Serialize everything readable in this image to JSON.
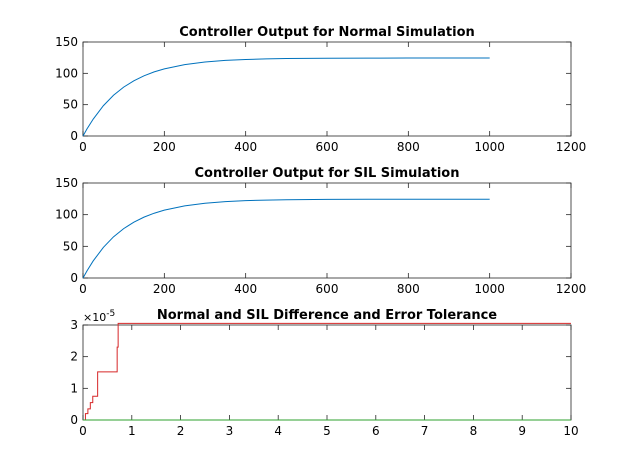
{
  "figure": {
    "background": "#ffffff"
  },
  "chart_data": [
    {
      "type": "line",
      "title": "Controller Output for Normal Simulation",
      "xlabel": "",
      "ylabel": "",
      "xlim": [
        0,
        1200
      ],
      "ylim": [
        0,
        150
      ],
      "xticks": [
        0,
        200,
        400,
        600,
        800,
        1000,
        1200
      ],
      "yticks": [
        0,
        50,
        100,
        150
      ],
      "grid": false,
      "legend": "none",
      "series": [
        {
          "color": "#0072bd",
          "x": [
            0,
            10,
            25,
            50,
            75,
            100,
            125,
            150,
            175,
            200,
            250,
            300,
            350,
            400,
            450,
            500,
            600,
            700,
            800,
            900,
            1000
          ],
          "y": [
            0,
            11.5,
            26.9,
            48.3,
            65.0,
            78.0,
            88.1,
            96.1,
            102.3,
            107.1,
            113.9,
            118.1,
            120.6,
            122.1,
            123.0,
            123.6,
            124.1,
            124.3,
            124.4,
            124.4,
            124.4
          ]
        }
      ]
    },
    {
      "type": "line",
      "title": "Controller Output for SIL Simulation",
      "xlabel": "",
      "ylabel": "",
      "xlim": [
        0,
        1200
      ],
      "ylim": [
        0,
        150
      ],
      "xticks": [
        0,
        200,
        400,
        600,
        800,
        1000,
        1200
      ],
      "yticks": [
        0,
        50,
        100,
        150
      ],
      "grid": false,
      "legend": "none",
      "series": [
        {
          "color": "#0072bd",
          "x": [
            0,
            10,
            25,
            50,
            75,
            100,
            125,
            150,
            175,
            200,
            250,
            300,
            350,
            400,
            450,
            500,
            600,
            700,
            800,
            900,
            1000
          ],
          "y": [
            0,
            11.5,
            26.9,
            48.3,
            65.0,
            78.0,
            88.1,
            96.1,
            102.3,
            107.1,
            113.9,
            118.1,
            120.6,
            122.1,
            123.0,
            123.6,
            124.1,
            124.3,
            124.4,
            124.4,
            124.4
          ]
        }
      ]
    },
    {
      "type": "line",
      "title": "Normal and SIL Difference and Error Tolerance",
      "xlabel": "",
      "ylabel": "",
      "xlim": [
        0,
        10
      ],
      "ylim": [
        0,
        3
      ],
      "y_exponent_label": "×10",
      "y_exponent_power": "-5",
      "xticks": [
        0,
        1,
        2,
        3,
        4,
        5,
        6,
        7,
        8,
        9,
        10
      ],
      "yticks": [
        0,
        1,
        2,
        3
      ],
      "grid": false,
      "legend": "none",
      "series": [
        {
          "color": "#d62728",
          "step": true,
          "x": [
            0,
            0.05,
            0.1,
            0.15,
            0.2,
            0.3,
            0.5,
            0.7,
            0.72,
            10
          ],
          "y": [
            0,
            0.2,
            0.35,
            0.55,
            0.75,
            1.52,
            1.52,
            2.3,
            3.05,
            3.05
          ]
        },
        {
          "color": "#2ca02c",
          "step": false,
          "x": [
            0,
            10
          ],
          "y": [
            0,
            0
          ]
        }
      ]
    }
  ]
}
